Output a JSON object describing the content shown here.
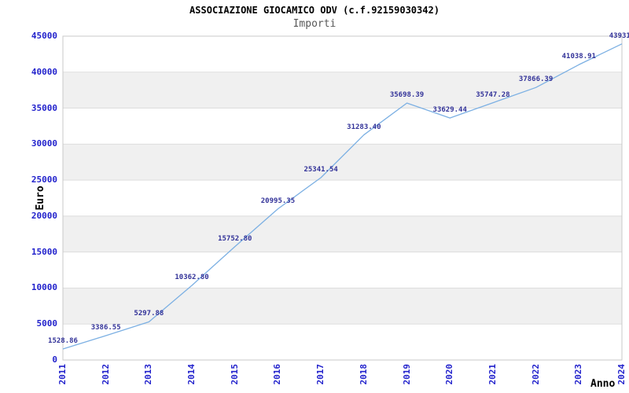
{
  "chart_data": {
    "type": "line",
    "title": "ASSOCIAZIONE GIOCAMICO ODV (c.f.92159030342)",
    "subtitle": "Importi",
    "xlabel": "Anno",
    "ylabel": "Euro",
    "x": [
      "2011",
      "2012",
      "2013",
      "2014",
      "2015",
      "2016",
      "2017",
      "2018",
      "2019",
      "2020",
      "2021",
      "2022",
      "2023",
      "2024"
    ],
    "values": [
      1528.86,
      3386.55,
      5297.88,
      10362.8,
      15752.8,
      20995.35,
      25341.54,
      31283.4,
      35698.39,
      33629.44,
      35747.28,
      37866.39,
      41038.91,
      43931
    ],
    "value_labels": [
      "1528.86",
      "3386.55",
      "5297.88",
      "10362.80",
      "15752.80",
      "20995.35",
      "25341.54",
      "31283.40",
      "35698.39",
      "33629.44",
      "35747.28",
      "37866.39",
      "41038.91",
      "43931."
    ],
    "ylim": [
      0,
      45000
    ],
    "yticks": [
      0,
      5000,
      10000,
      15000,
      20000,
      25000,
      30000,
      35000,
      40000,
      45000
    ],
    "ytick_step": 5000,
    "legend": "none",
    "grid": "alternating-horizontal-bands",
    "markers": "none",
    "colors": {
      "background": "#ffffff",
      "plot_bg": "#ffffff",
      "band": "#f0f0f0",
      "gridline": "#dddddd",
      "plot_border": "#c8c8c8",
      "line": "#7cb0e3",
      "tick_label": "#2222cc",
      "value_label": "#333399",
      "axis_title": "#000000",
      "title": "#000000",
      "subtitle": "#585858"
    }
  }
}
